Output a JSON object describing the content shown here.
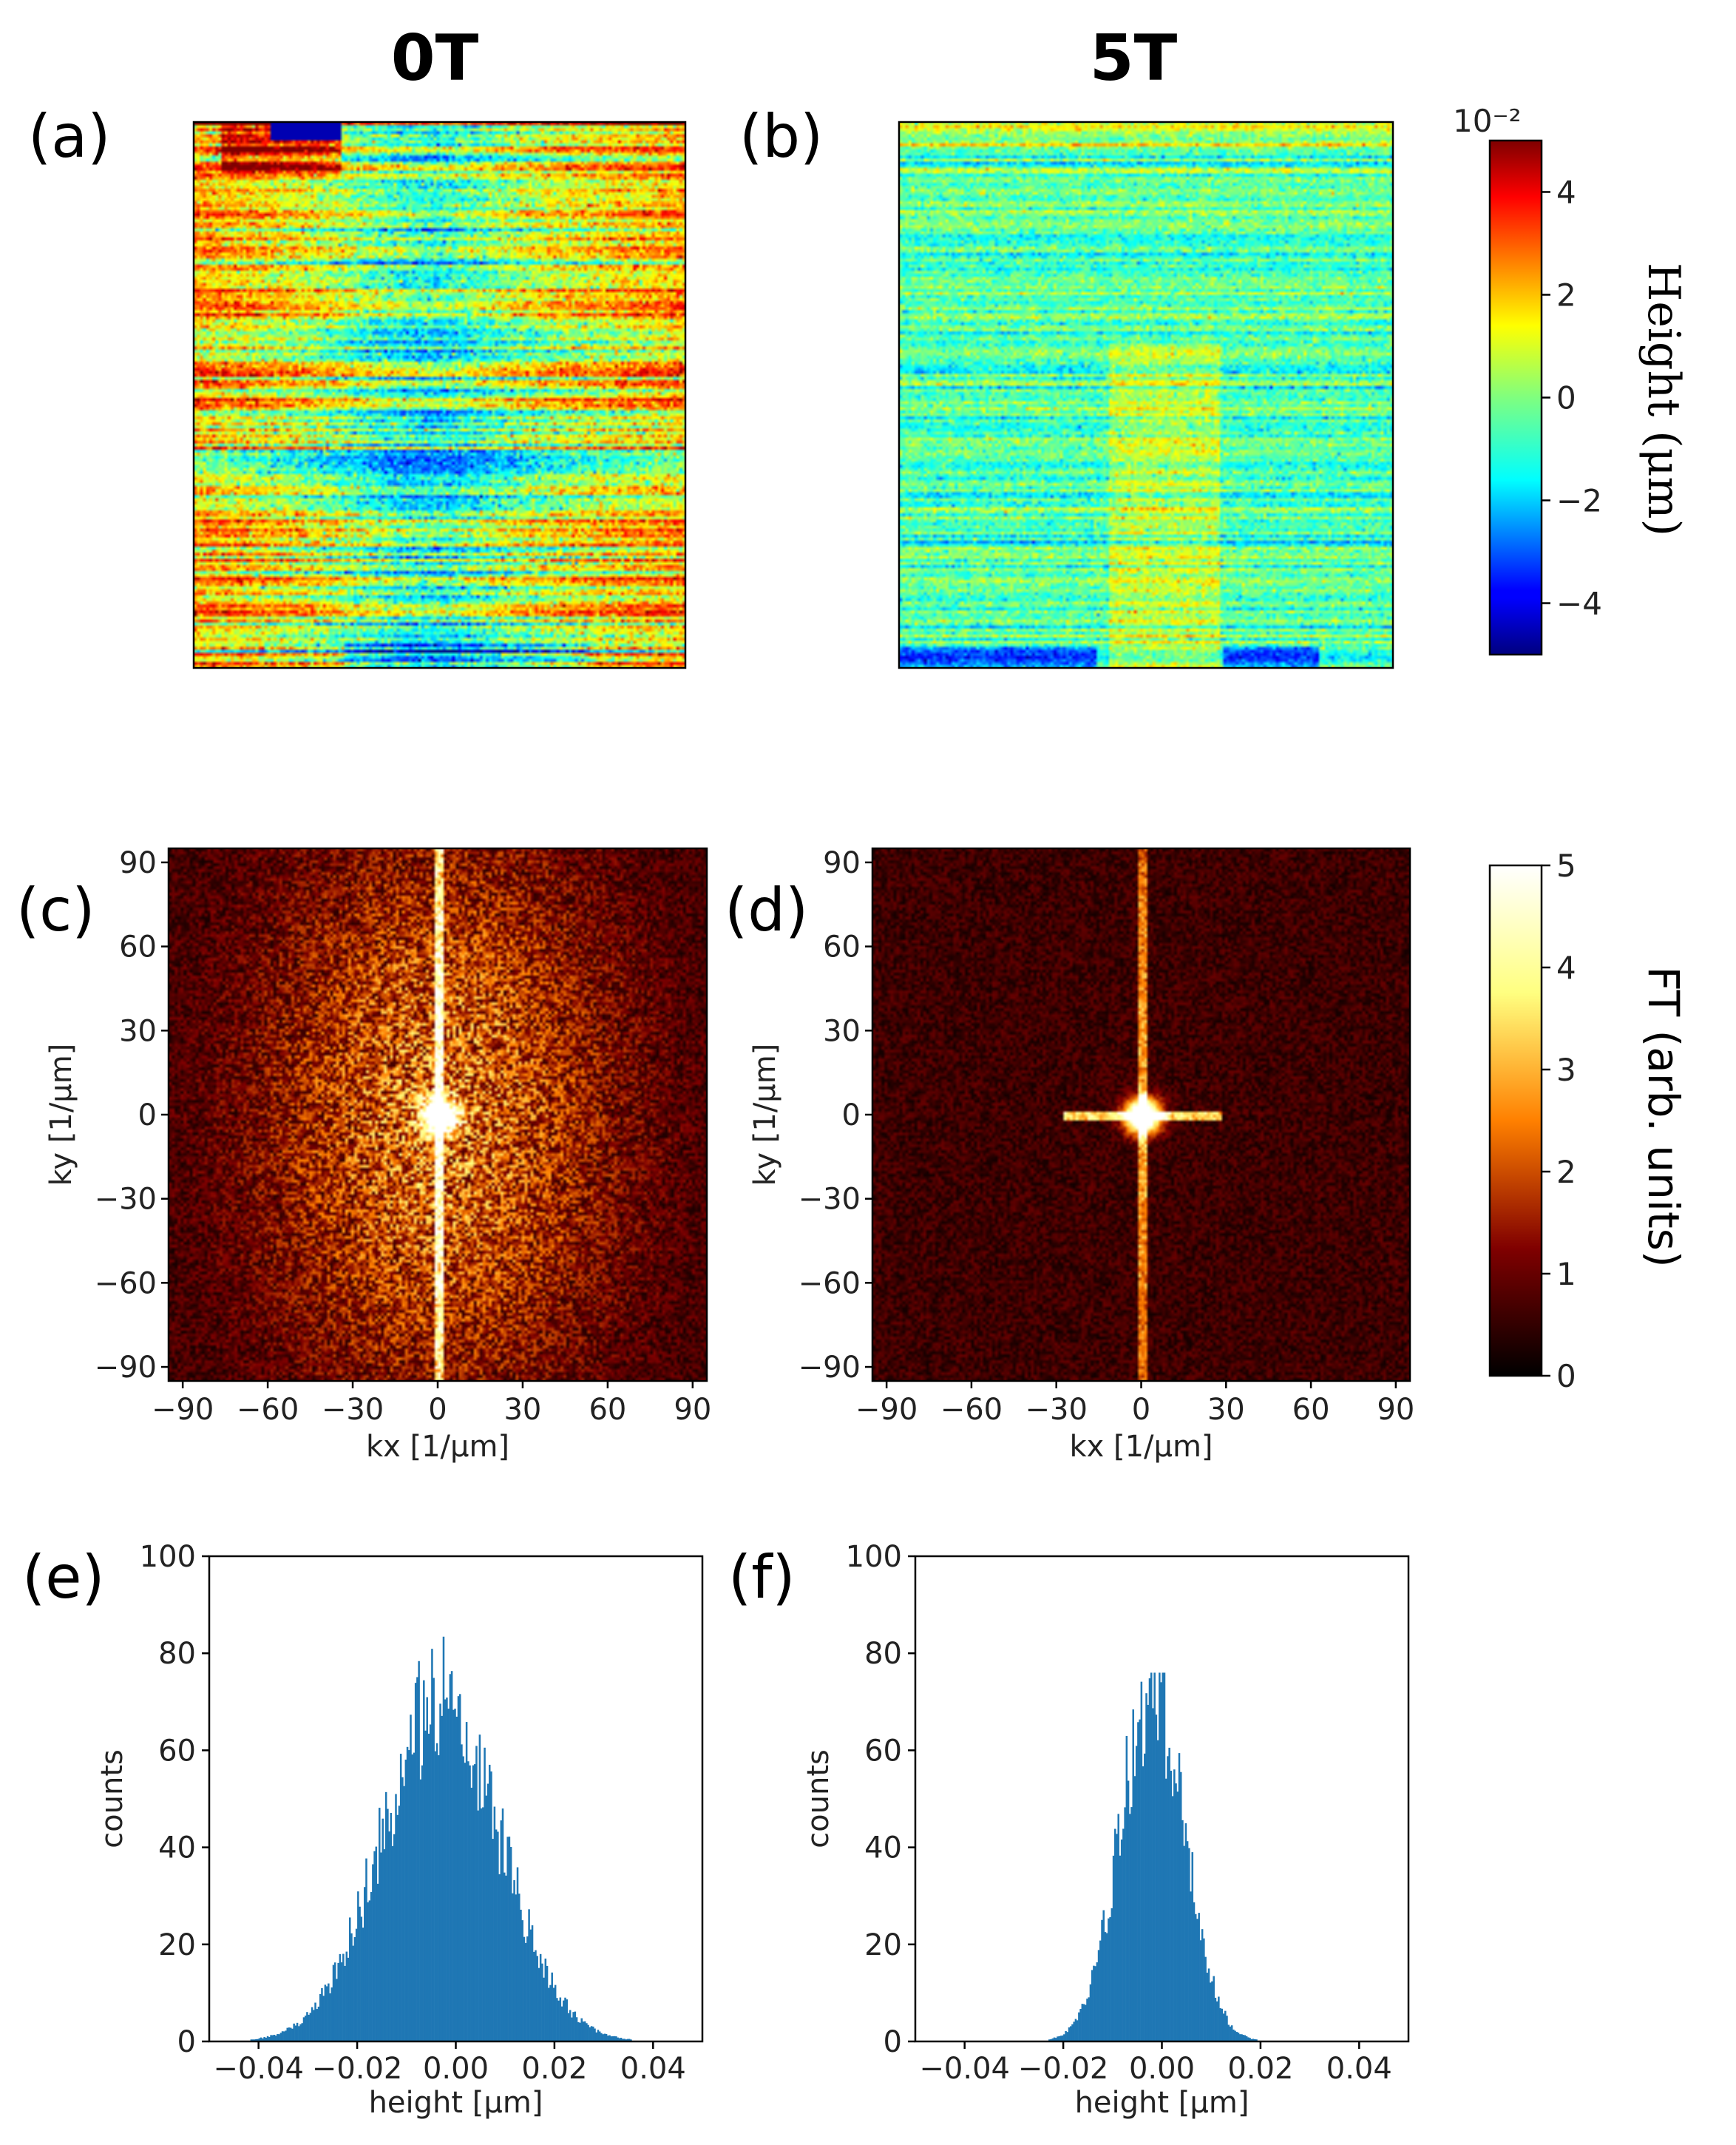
{
  "chart_data": [
    {
      "id": "a",
      "type": "heatmap",
      "panel_label": "(a)",
      "title": "0T",
      "description_values": "surface height map at 0 T",
      "colormap": "jet",
      "vmin": -5,
      "vmax": 5,
      "xlabel": "",
      "ylabel": ""
    },
    {
      "id": "b",
      "type": "heatmap",
      "panel_label": "(b)",
      "title": "5T",
      "colormap": "jet",
      "vmin": -5,
      "vmax": 5,
      "xlabel": "",
      "ylabel": ""
    },
    {
      "id": "height_colorbar",
      "type": "heatmap",
      "exponent_label": "10⁻²",
      "ticks": [
        4,
        2,
        0,
        -2,
        -4
      ],
      "tick_labels": [
        "4",
        "2",
        "0",
        "−2",
        "−4"
      ],
      "range": [
        -5,
        5
      ],
      "label": "Height (μm)"
    },
    {
      "id": "c",
      "type": "heatmap",
      "panel_label": "(c)",
      "xlabel": "kx [1/μm]",
      "ylabel": "ky [1/μm]",
      "xticks": [
        -90,
        -60,
        -30,
        0,
        30,
        60,
        90
      ],
      "yticks": [
        90,
        60,
        30,
        0,
        -30,
        -60,
        -90
      ],
      "xtick_labels": [
        "−90",
        "−60",
        "−30",
        "0",
        "30",
        "60",
        "90"
      ],
      "ytick_labels": [
        "90",
        "60",
        "30",
        "0",
        "−30",
        "−60",
        "−90"
      ],
      "xlim": [
        -95,
        95
      ],
      "ylim": [
        -95,
        95
      ],
      "colormap": "afmhot",
      "vmin": 0,
      "vmax": 5
    },
    {
      "id": "d",
      "type": "heatmap",
      "panel_label": "(d)",
      "xlabel": "kx [1/μm]",
      "ylabel": "ky [1/μm]",
      "xticks": [
        -90,
        -60,
        -30,
        0,
        30,
        60,
        90
      ],
      "yticks": [
        90,
        60,
        30,
        0,
        -30,
        -60,
        -90
      ],
      "xtick_labels": [
        "−90",
        "−60",
        "−30",
        "0",
        "30",
        "60",
        "90"
      ],
      "ytick_labels": [
        "90",
        "60",
        "30",
        "0",
        "−30",
        "−60",
        "−90"
      ],
      "xlim": [
        -95,
        95
      ],
      "ylim": [
        -95,
        95
      ],
      "colormap": "afmhot",
      "vmin": 0,
      "vmax": 5
    },
    {
      "id": "ft_colorbar",
      "type": "heatmap",
      "ticks": [
        5,
        4,
        3,
        2,
        1,
        0
      ],
      "tick_labels": [
        "5",
        "4",
        "3",
        "2",
        "1",
        "0"
      ],
      "range": [
        0,
        5
      ],
      "label": "FT (arb. units)"
    },
    {
      "id": "e",
      "type": "bar",
      "panel_label": "(e)",
      "xlabel": "height [μm]",
      "ylabel": "counts",
      "xlim": [
        -0.05,
        0.05
      ],
      "ylim": [
        0,
        100
      ],
      "xticks": [
        -0.04,
        -0.02,
        0.0,
        0.02,
        0.04
      ],
      "xtick_labels": [
        "−0.04",
        "−0.02",
        "0.00",
        "0.02",
        "0.04"
      ],
      "yticks": [
        0,
        20,
        40,
        60,
        80,
        100
      ],
      "ytick_labels": [
        "0",
        "20",
        "40",
        "60",
        "80",
        "100"
      ],
      "distribution": {
        "center": -0.003,
        "sigma": 0.012,
        "peak": 70,
        "max_count": 87
      },
      "color": "#1f77b4"
    },
    {
      "id": "f",
      "type": "bar",
      "panel_label": "(f)",
      "xlabel": "height [μm]",
      "ylabel": "counts",
      "xlim": [
        -0.05,
        0.05
      ],
      "ylim": [
        0,
        100
      ],
      "xticks": [
        -0.04,
        -0.02,
        0.0,
        0.02,
        0.04
      ],
      "xtick_labels": [
        "−0.04",
        "−0.02",
        "0.00",
        "0.02",
        "0.04"
      ],
      "yticks": [
        0,
        20,
        40,
        60,
        80,
        100
      ],
      "ytick_labels": [
        "0",
        "20",
        "40",
        "60",
        "80",
        "100"
      ],
      "distribution": {
        "center": -0.002,
        "sigma": 0.0065,
        "peak": 72,
        "max_count": 76
      },
      "color": "#1f77b4"
    }
  ]
}
